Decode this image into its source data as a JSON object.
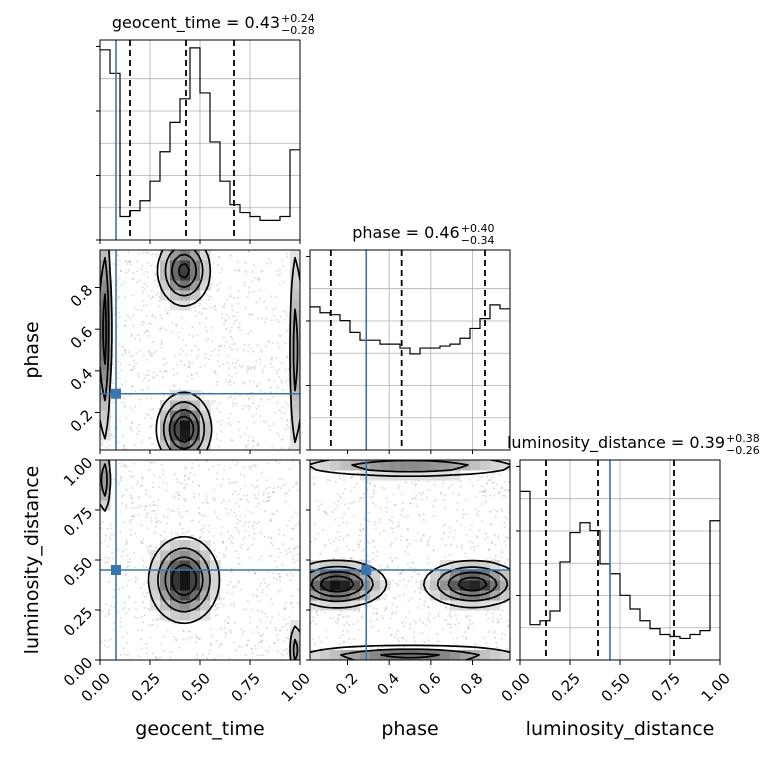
{
  "figure": {
    "kind": "corner plot"
  },
  "chart_data": {
    "type": "corner",
    "truth_color": "#3b75af",
    "parameters": [
      {
        "name": "geocent_time",
        "axis_label": "geocent_time",
        "range": [
          0,
          1
        ],
        "ticks": [
          "0.00",
          "0.25",
          "0.50",
          "0.75",
          "1.00"
        ],
        "tick_values": [
          0,
          0.25,
          0.5,
          0.75,
          1
        ],
        "title_prefix": "geocent_time = 0.43",
        "title_plus": "+0.24",
        "title_minus": "−0.28",
        "median": 0.43,
        "quantiles": [
          0.15,
          0.43,
          0.67
        ],
        "truth": 0.08,
        "histogram": {
          "bin_edges": [
            0,
            0.05,
            0.1,
            0.15,
            0.2,
            0.25,
            0.3,
            0.35,
            0.4,
            0.45,
            0.5,
            0.55,
            0.6,
            0.65,
            0.7,
            0.75,
            0.8,
            0.85,
            0.9,
            0.95,
            1
          ],
          "counts": [
            0.97,
            0.85,
            0.12,
            0.15,
            0.2,
            0.3,
            0.45,
            0.6,
            0.72,
            0.98,
            0.75,
            0.5,
            0.3,
            0.18,
            0.14,
            0.12,
            0.1,
            0.1,
            0.12,
            0.46
          ],
          "ymax": 1.02
        }
      },
      {
        "name": "phase",
        "axis_label": "phase",
        "range": [
          0.02,
          0.98
        ],
        "ticks": [
          "0.2",
          "0.4",
          "0.6",
          "0.8"
        ],
        "tick_values": [
          0.2,
          0.4,
          0.6,
          0.8
        ],
        "title_prefix": "phase = 0.46",
        "title_plus": "+0.40",
        "title_minus": "−0.34",
        "median": 0.46,
        "quantiles": [
          0.12,
          0.46,
          0.86
        ],
        "truth": 0.29,
        "histogram": {
          "bin_edges": [
            0.02,
            0.068,
            0.116,
            0.164,
            0.212,
            0.26,
            0.308,
            0.356,
            0.404,
            0.452,
            0.5,
            0.548,
            0.596,
            0.644,
            0.692,
            0.74,
            0.788,
            0.836,
            0.884,
            0.932,
            0.98
          ],
          "counts": [
            0.73,
            0.7,
            0.69,
            0.66,
            0.6,
            0.56,
            0.56,
            0.54,
            0.54,
            0.52,
            0.49,
            0.52,
            0.52,
            0.53,
            0.54,
            0.57,
            0.62,
            0.67,
            0.74,
            0.72
          ],
          "ymax": 1.02
        }
      },
      {
        "name": "luminosity_distance",
        "axis_label": "luminosity_distance",
        "range": [
          0,
          1
        ],
        "ticks": [
          "0.00",
          "0.25",
          "0.50",
          "0.75",
          "1.00"
        ],
        "tick_values": [
          0,
          0.25,
          0.5,
          0.75,
          1
        ],
        "title_prefix": "luminosity_distance = 0.39",
        "title_plus": "+0.38",
        "title_minus": "−0.26",
        "median": 0.39,
        "quantiles": [
          0.13,
          0.39,
          0.77
        ],
        "truth": 0.45,
        "histogram": {
          "bin_edges": [
            0,
            0.05,
            0.1,
            0.15,
            0.2,
            0.25,
            0.3,
            0.35,
            0.4,
            0.45,
            0.5,
            0.55,
            0.6,
            0.65,
            0.7,
            0.75,
            0.8,
            0.85,
            0.9,
            0.95,
            1
          ],
          "counts": [
            0.86,
            0.18,
            0.2,
            0.25,
            0.5,
            0.65,
            0.7,
            0.66,
            0.49,
            0.44,
            0.33,
            0.26,
            0.2,
            0.16,
            0.13,
            0.12,
            0.11,
            0.13,
            0.15,
            0.71
          ],
          "ymax": 1.02
        }
      }
    ],
    "pairs": [
      {
        "x": "geocent_time",
        "y": "phase",
        "truth": [
          0.08,
          0.29
        ],
        "density_peaks": [
          {
            "x": 0.42,
            "y": 0.12,
            "sx": 0.07,
            "sy": 0.09,
            "w": 1.0
          },
          {
            "x": 0.42,
            "y": 0.88,
            "sx": 0.07,
            "sy": 0.09,
            "w": 0.85
          },
          {
            "x": 0.02,
            "y": 0.6,
            "sx": 0.02,
            "sy": 0.3,
            "w": 0.7
          },
          {
            "x": 0.98,
            "y": 0.5,
            "sx": 0.02,
            "sy": 0.3,
            "w": 0.45
          }
        ]
      },
      {
        "x": "geocent_time",
        "y": "luminosity_distance",
        "truth": [
          0.08,
          0.45
        ],
        "density_peaks": [
          {
            "x": 0.42,
            "y": 0.4,
            "sx": 0.09,
            "sy": 0.11,
            "w": 1.0
          },
          {
            "x": 0.02,
            "y": 0.9,
            "sx": 0.02,
            "sy": 0.1,
            "w": 0.5
          },
          {
            "x": 0.98,
            "y": 0.05,
            "sx": 0.02,
            "sy": 0.08,
            "w": 0.45
          }
        ]
      },
      {
        "x": "phase",
        "y": "luminosity_distance",
        "truth": [
          0.29,
          0.45
        ],
        "density_peaks": [
          {
            "x": 0.15,
            "y": 0.38,
            "sx": 0.12,
            "sy": 0.06,
            "w": 0.9
          },
          {
            "x": 0.8,
            "y": 0.38,
            "sx": 0.12,
            "sy": 0.06,
            "w": 0.85
          },
          {
            "x": 0.5,
            "y": 0.02,
            "sx": 0.3,
            "sy": 0.03,
            "w": 0.6
          },
          {
            "x": 0.5,
            "y": 0.97,
            "sx": 0.3,
            "sy": 0.03,
            "w": 0.5
          }
        ]
      }
    ]
  }
}
